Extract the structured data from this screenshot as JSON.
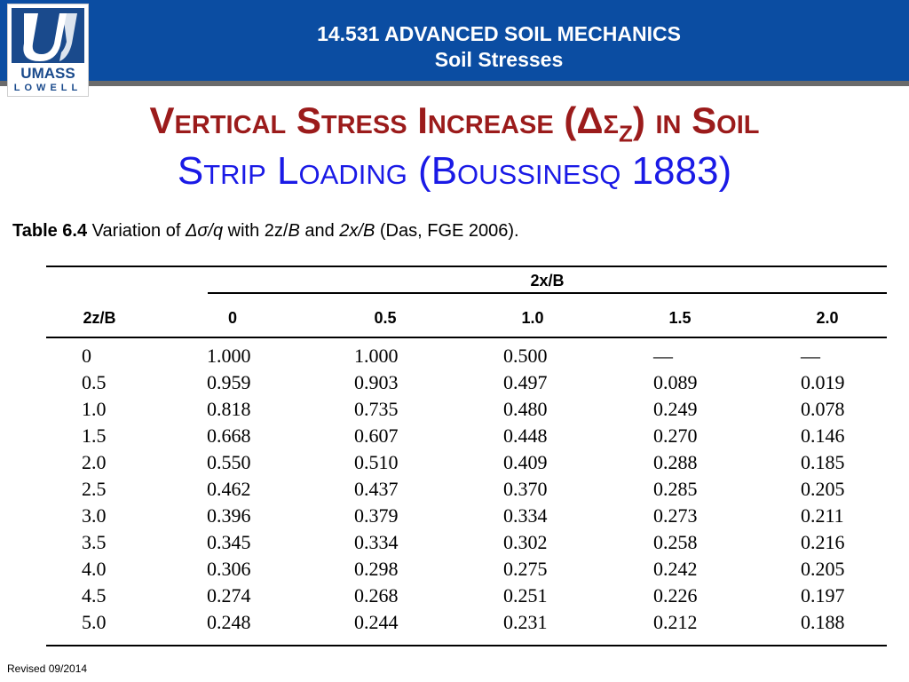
{
  "header": {
    "course_line1": "14.531 ADVANCED SOIL MECHANICS",
    "course_line2": "Soil Stresses"
  },
  "logo": {
    "wordmark": "UMASS",
    "sub": "LOWELL"
  },
  "title": {
    "line1_pre": "Vertical Stress Increase (",
    "line1_symbol": "Δσ",
    "line1_sub": "Z",
    "line1_post": ") in Soil",
    "line2": "Strip Loading (Boussinesq 1883)"
  },
  "caption": {
    "label": "Table 6.4",
    "text_a": " Variation of ",
    "symbol": "Δσ/q",
    "text_b": " with 2z/",
    "b1": "B",
    "text_c": " and ",
    "ratio": "2x/B",
    "text_d": " (Das, FGE 2006)."
  },
  "table": {
    "group_header": "2x/B",
    "row_header": "2z/B",
    "columns": [
      "0",
      "0.5",
      "1.0",
      "1.5",
      "2.0"
    ],
    "rows": [
      [
        "0",
        "1.000",
        "1.000",
        "0.500",
        "—",
        "—"
      ],
      [
        "0.5",
        "0.959",
        "0.903",
        "0.497",
        "0.089",
        "0.019"
      ],
      [
        "1.0",
        "0.818",
        "0.735",
        "0.480",
        "0.249",
        "0.078"
      ],
      [
        "1.5",
        "0.668",
        "0.607",
        "0.448",
        "0.270",
        "0.146"
      ],
      [
        "2.0",
        "0.550",
        "0.510",
        "0.409",
        "0.288",
        "0.185"
      ],
      [
        "2.5",
        "0.462",
        "0.437",
        "0.370",
        "0.285",
        "0.205"
      ],
      [
        "3.0",
        "0.396",
        "0.379",
        "0.334",
        "0.273",
        "0.211"
      ],
      [
        "3.5",
        "0.345",
        "0.334",
        "0.302",
        "0.258",
        "0.216"
      ],
      [
        "4.0",
        "0.306",
        "0.298",
        "0.275",
        "0.242",
        "0.205"
      ],
      [
        "4.5",
        "0.274",
        "0.268",
        "0.251",
        "0.226",
        "0.197"
      ],
      [
        "5.0",
        "0.248",
        "0.244",
        "0.231",
        "0.212",
        "0.188"
      ]
    ]
  },
  "footer": {
    "revised": "Revised 09/2014"
  }
}
